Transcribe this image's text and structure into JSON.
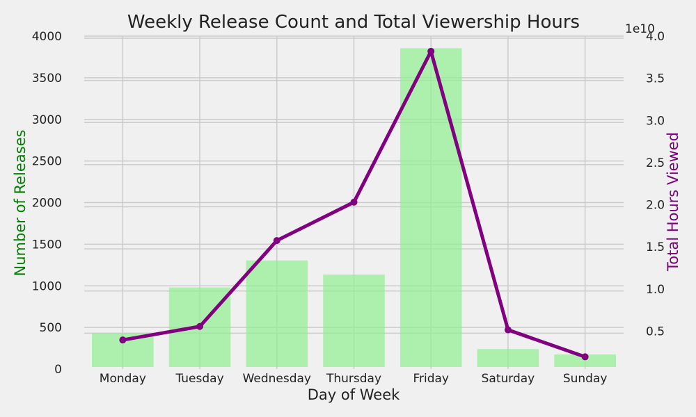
{
  "chart_data": {
    "type": "bar+line",
    "title": "Weekly Release Count and Total Viewership Hours",
    "xlabel": "Day of Week",
    "ylabel_left": "Number of Releases",
    "ylabel_right": "Total Hours Viewed",
    "right_axis_multiplier": "1e10",
    "categories": [
      "Monday",
      "Tuesday",
      "Wednesday",
      "Thursday",
      "Friday",
      "Saturday",
      "Sunday"
    ],
    "left_ylim": [
      0,
      4000
    ],
    "left_yticks": [
      "0",
      "500",
      "1000",
      "1500",
      "2000",
      "2500",
      "3000",
      "3500",
      "4000"
    ],
    "right_ylim": [
      0.05,
      4.0
    ],
    "right_yticks": [
      "0.5",
      "1.0",
      "1.5",
      "2.0",
      "2.5",
      "3.0",
      "3.5",
      "4.0"
    ],
    "grid": true,
    "series": [
      {
        "type": "bar",
        "axis": "left",
        "color": "#90ee90",
        "values": [
          430,
          980,
          1305,
          1135,
          3855,
          240,
          175
        ]
      },
      {
        "type": "line",
        "axis": "right",
        "color": "#800080",
        "values": [
          0.395,
          0.555,
          1.575,
          2.03,
          3.82,
          0.515,
          0.195
        ]
      }
    ],
    "left_label_color": "#008000",
    "right_label_color": "#800080"
  }
}
